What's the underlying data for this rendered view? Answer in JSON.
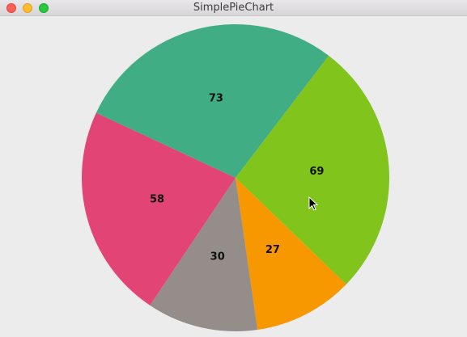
{
  "window": {
    "title": "SimplePieChart"
  },
  "chart_data": {
    "type": "pie",
    "values": [
      69,
      27,
      30,
      58,
      73
    ],
    "labels": [
      "69",
      "27",
      "30",
      "58",
      "73"
    ],
    "colors": [
      "#80c41c",
      "#f79800",
      "#958d8a",
      "#e24575",
      "#40ad84"
    ],
    "start_angle_deg": -52.7,
    "direction": "clockwise"
  },
  "cursor": {
    "icon": "arrow-cursor-icon"
  }
}
